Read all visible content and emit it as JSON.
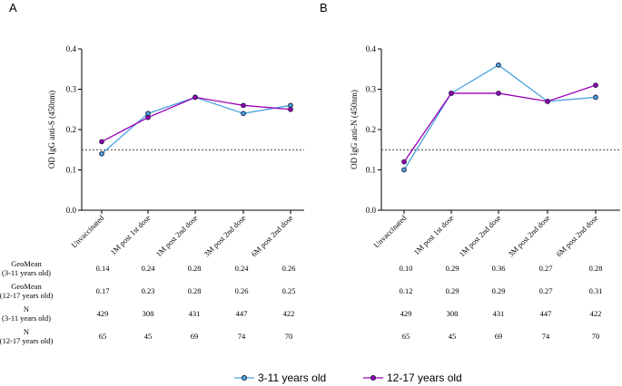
{
  "chart_data": [
    {
      "type": "line",
      "panel": "A",
      "title": "",
      "xlabel": "",
      "ylabel": "OD IgG anti-S (450nm)",
      "ylim": [
        0,
        0.4
      ],
      "yticks": [
        "0.0",
        "0.1",
        "0.2",
        "0.3",
        "0.4"
      ],
      "grid": false,
      "threshold": 0.15,
      "categories": [
        "Unvaccinated",
        "1M post 1st dose",
        "1M post 2nd dose",
        "3M post 2nd dose",
        "6M post 2nd dose"
      ],
      "series": [
        {
          "name": "3-11 years old",
          "color": "#4aa3df",
          "values": [
            0.14,
            0.24,
            0.28,
            0.24,
            0.26
          ]
        },
        {
          "name": "12-17 years old",
          "color": "#9a00b8",
          "values": [
            0.17,
            0.23,
            0.28,
            0.26,
            0.25
          ]
        }
      ],
      "table": [
        {
          "label": [
            "GeoMean",
            "(3-11 years old)"
          ],
          "cells": [
            "0.14",
            "0.24",
            "0.28",
            "0.24",
            "0.26"
          ]
        },
        {
          "label": [
            "GeoMean",
            "(12-17 years old)"
          ],
          "cells": [
            "0.17",
            "0.23",
            "0.28",
            "0.26",
            "0.25"
          ]
        },
        {
          "label": [
            "N",
            "(3-11 years old)"
          ],
          "cells": [
            "429",
            "308",
            "431",
            "447",
            "422"
          ]
        },
        {
          "label": [
            "N",
            "(12-17 years old)"
          ],
          "cells": [
            "65",
            "45",
            "69",
            "74",
            "70"
          ]
        }
      ]
    },
    {
      "type": "line",
      "panel": "B",
      "title": "",
      "xlabel": "",
      "ylabel": "OD IgG anti-N (450nm)",
      "ylim": [
        0,
        0.4
      ],
      "yticks": [
        "0.0",
        "0.1",
        "0.2",
        "0.3",
        "0.4"
      ],
      "grid": false,
      "threshold": 0.15,
      "categories": [
        "Unvaccinated",
        "1M post 1st dose",
        "1M post 2nd dose",
        "3M post 2nd dose",
        "6M post 2nd dose"
      ],
      "series": [
        {
          "name": "3-11 years old",
          "color": "#4aa3df",
          "values": [
            0.1,
            0.29,
            0.36,
            0.27,
            0.28
          ]
        },
        {
          "name": "12-17 years old",
          "color": "#9a00b8",
          "values": [
            0.12,
            0.29,
            0.29,
            0.27,
            0.31
          ]
        }
      ],
      "table": [
        {
          "cells": [
            "0.10",
            "0.29",
            "0.36",
            "0.27",
            "0.28"
          ]
        },
        {
          "cells": [
            "0.12",
            "0.29",
            "0.29",
            "0.27",
            "0.31"
          ]
        },
        {
          "cells": [
            "429",
            "308",
            "431",
            "447",
            "422"
          ]
        },
        {
          "cells": [
            "65",
            "45",
            "69",
            "74",
            "70"
          ]
        }
      ]
    }
  ],
  "legend": [
    {
      "label": "3-11 years old",
      "color": "#4aa3df"
    },
    {
      "label": "12-17 years old",
      "color": "#9a00b8"
    }
  ]
}
